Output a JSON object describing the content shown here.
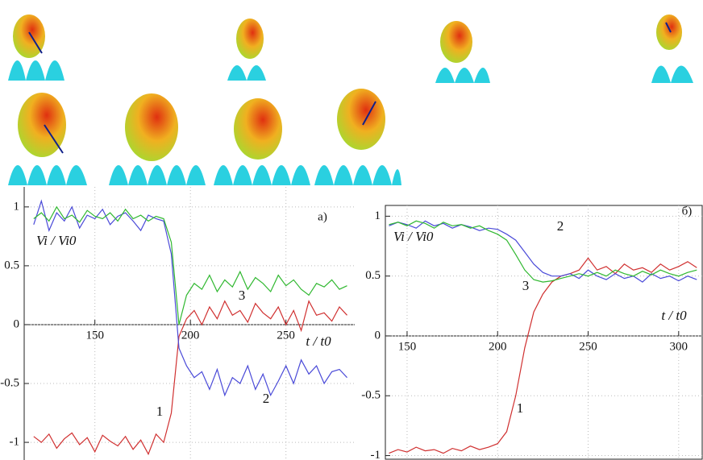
{
  "chart_data": [
    {
      "type": "line",
      "panel_label": "а)",
      "xlabel": "t / t0",
      "ylabel": "Vi / Vi0",
      "xlim": [
        113,
        286
      ],
      "ylim": [
        -1.15,
        1.17
      ],
      "xticks": [
        150,
        200,
        250
      ],
      "yticks": [
        -1,
        -0.5,
        0,
        0.5,
        1
      ],
      "grid": true,
      "x": [
        118,
        122,
        126,
        130,
        134,
        138,
        142,
        146,
        150,
        154,
        158,
        162,
        166,
        170,
        174,
        178,
        182,
        186,
        190,
        194,
        198,
        202,
        206,
        210,
        214,
        218,
        222,
        226,
        230,
        234,
        238,
        242,
        246,
        250,
        254,
        258,
        262,
        266,
        270,
        274,
        278,
        282
      ],
      "series": [
        {
          "name": "1",
          "color": "#d03030",
          "values": [
            -0.95,
            -1.0,
            -0.93,
            -1.05,
            -0.97,
            -0.92,
            -1.02,
            -0.96,
            -1.08,
            -0.94,
            -0.99,
            -1.03,
            -0.95,
            -1.06,
            -0.98,
            -1.1,
            -0.93,
            -1.0,
            -0.75,
            -0.1,
            0.05,
            0.12,
            0.0,
            0.15,
            0.05,
            0.2,
            0.08,
            0.12,
            0.02,
            0.18,
            0.1,
            0.05,
            0.15,
            0.0,
            0.12,
            -0.05,
            0.2,
            0.08,
            0.1,
            0.03,
            0.15,
            0.08
          ]
        },
        {
          "name": "2",
          "color": "#4a4ad8",
          "values": [
            0.85,
            1.05,
            0.8,
            0.95,
            0.88,
            1.0,
            0.82,
            0.93,
            0.9,
            0.98,
            0.85,
            0.92,
            0.95,
            0.88,
            0.8,
            0.93,
            0.9,
            0.88,
            0.6,
            -0.2,
            -0.35,
            -0.45,
            -0.4,
            -0.55,
            -0.38,
            -0.6,
            -0.45,
            -0.5,
            -0.35,
            -0.55,
            -0.42,
            -0.6,
            -0.48,
            -0.35,
            -0.5,
            -0.3,
            -0.42,
            -0.35,
            -0.5,
            -0.4,
            -0.38,
            -0.45
          ]
        },
        {
          "name": "3",
          "color": "#30b830",
          "values": [
            0.9,
            0.95,
            0.88,
            1.0,
            0.9,
            0.93,
            0.87,
            0.97,
            0.92,
            0.9,
            0.95,
            0.88,
            0.98,
            0.9,
            0.93,
            0.88,
            0.92,
            0.9,
            0.7,
            0.0,
            0.25,
            0.35,
            0.3,
            0.42,
            0.28,
            0.38,
            0.32,
            0.45,
            0.3,
            0.4,
            0.35,
            0.28,
            0.42,
            0.33,
            0.38,
            0.3,
            0.25,
            0.35,
            0.32,
            0.38,
            0.3,
            0.33
          ]
        }
      ]
    },
    {
      "type": "line",
      "panel_label": "б)",
      "xlabel": "t / t0",
      "ylabel": "Vi / Vi0",
      "xlim": [
        138,
        313
      ],
      "ylim": [
        -1.03,
        1.09
      ],
      "xticks": [
        150,
        200,
        250,
        300
      ],
      "yticks": [
        -1,
        -0.5,
        0,
        0.5,
        1
      ],
      "grid": true,
      "x": [
        140,
        145,
        150,
        155,
        160,
        165,
        170,
        175,
        180,
        185,
        190,
        195,
        200,
        205,
        210,
        215,
        220,
        225,
        230,
        235,
        240,
        245,
        250,
        255,
        260,
        265,
        270,
        275,
        280,
        285,
        290,
        295,
        300,
        305,
        310
      ],
      "series": [
        {
          "name": "1",
          "color": "#d03030",
          "values": [
            -0.98,
            -0.95,
            -0.97,
            -0.93,
            -0.96,
            -0.95,
            -0.98,
            -0.94,
            -0.96,
            -0.92,
            -0.95,
            -0.93,
            -0.9,
            -0.8,
            -0.5,
            -0.1,
            0.2,
            0.35,
            0.45,
            0.5,
            0.52,
            0.55,
            0.65,
            0.55,
            0.58,
            0.52,
            0.6,
            0.55,
            0.57,
            0.53,
            0.6,
            0.55,
            0.58,
            0.62,
            0.57
          ]
        },
        {
          "name": "2",
          "color": "#4a4ad8",
          "values": [
            0.92,
            0.95,
            0.93,
            0.9,
            0.96,
            0.92,
            0.94,
            0.9,
            0.93,
            0.91,
            0.88,
            0.9,
            0.89,
            0.85,
            0.8,
            0.7,
            0.6,
            0.53,
            0.5,
            0.5,
            0.52,
            0.48,
            0.55,
            0.5,
            0.47,
            0.52,
            0.48,
            0.5,
            0.45,
            0.52,
            0.48,
            0.5,
            0.46,
            0.5,
            0.47
          ]
        },
        {
          "name": "3",
          "color": "#30b830",
          "values": [
            0.93,
            0.95,
            0.92,
            0.96,
            0.94,
            0.9,
            0.95,
            0.92,
            0.93,
            0.9,
            0.92,
            0.88,
            0.85,
            0.8,
            0.68,
            0.55,
            0.47,
            0.45,
            0.46,
            0.48,
            0.5,
            0.52,
            0.5,
            0.53,
            0.5,
            0.55,
            0.52,
            0.5,
            0.54,
            0.51,
            0.55,
            0.52,
            0.5,
            0.53,
            0.55
          ]
        }
      ]
    }
  ]
}
